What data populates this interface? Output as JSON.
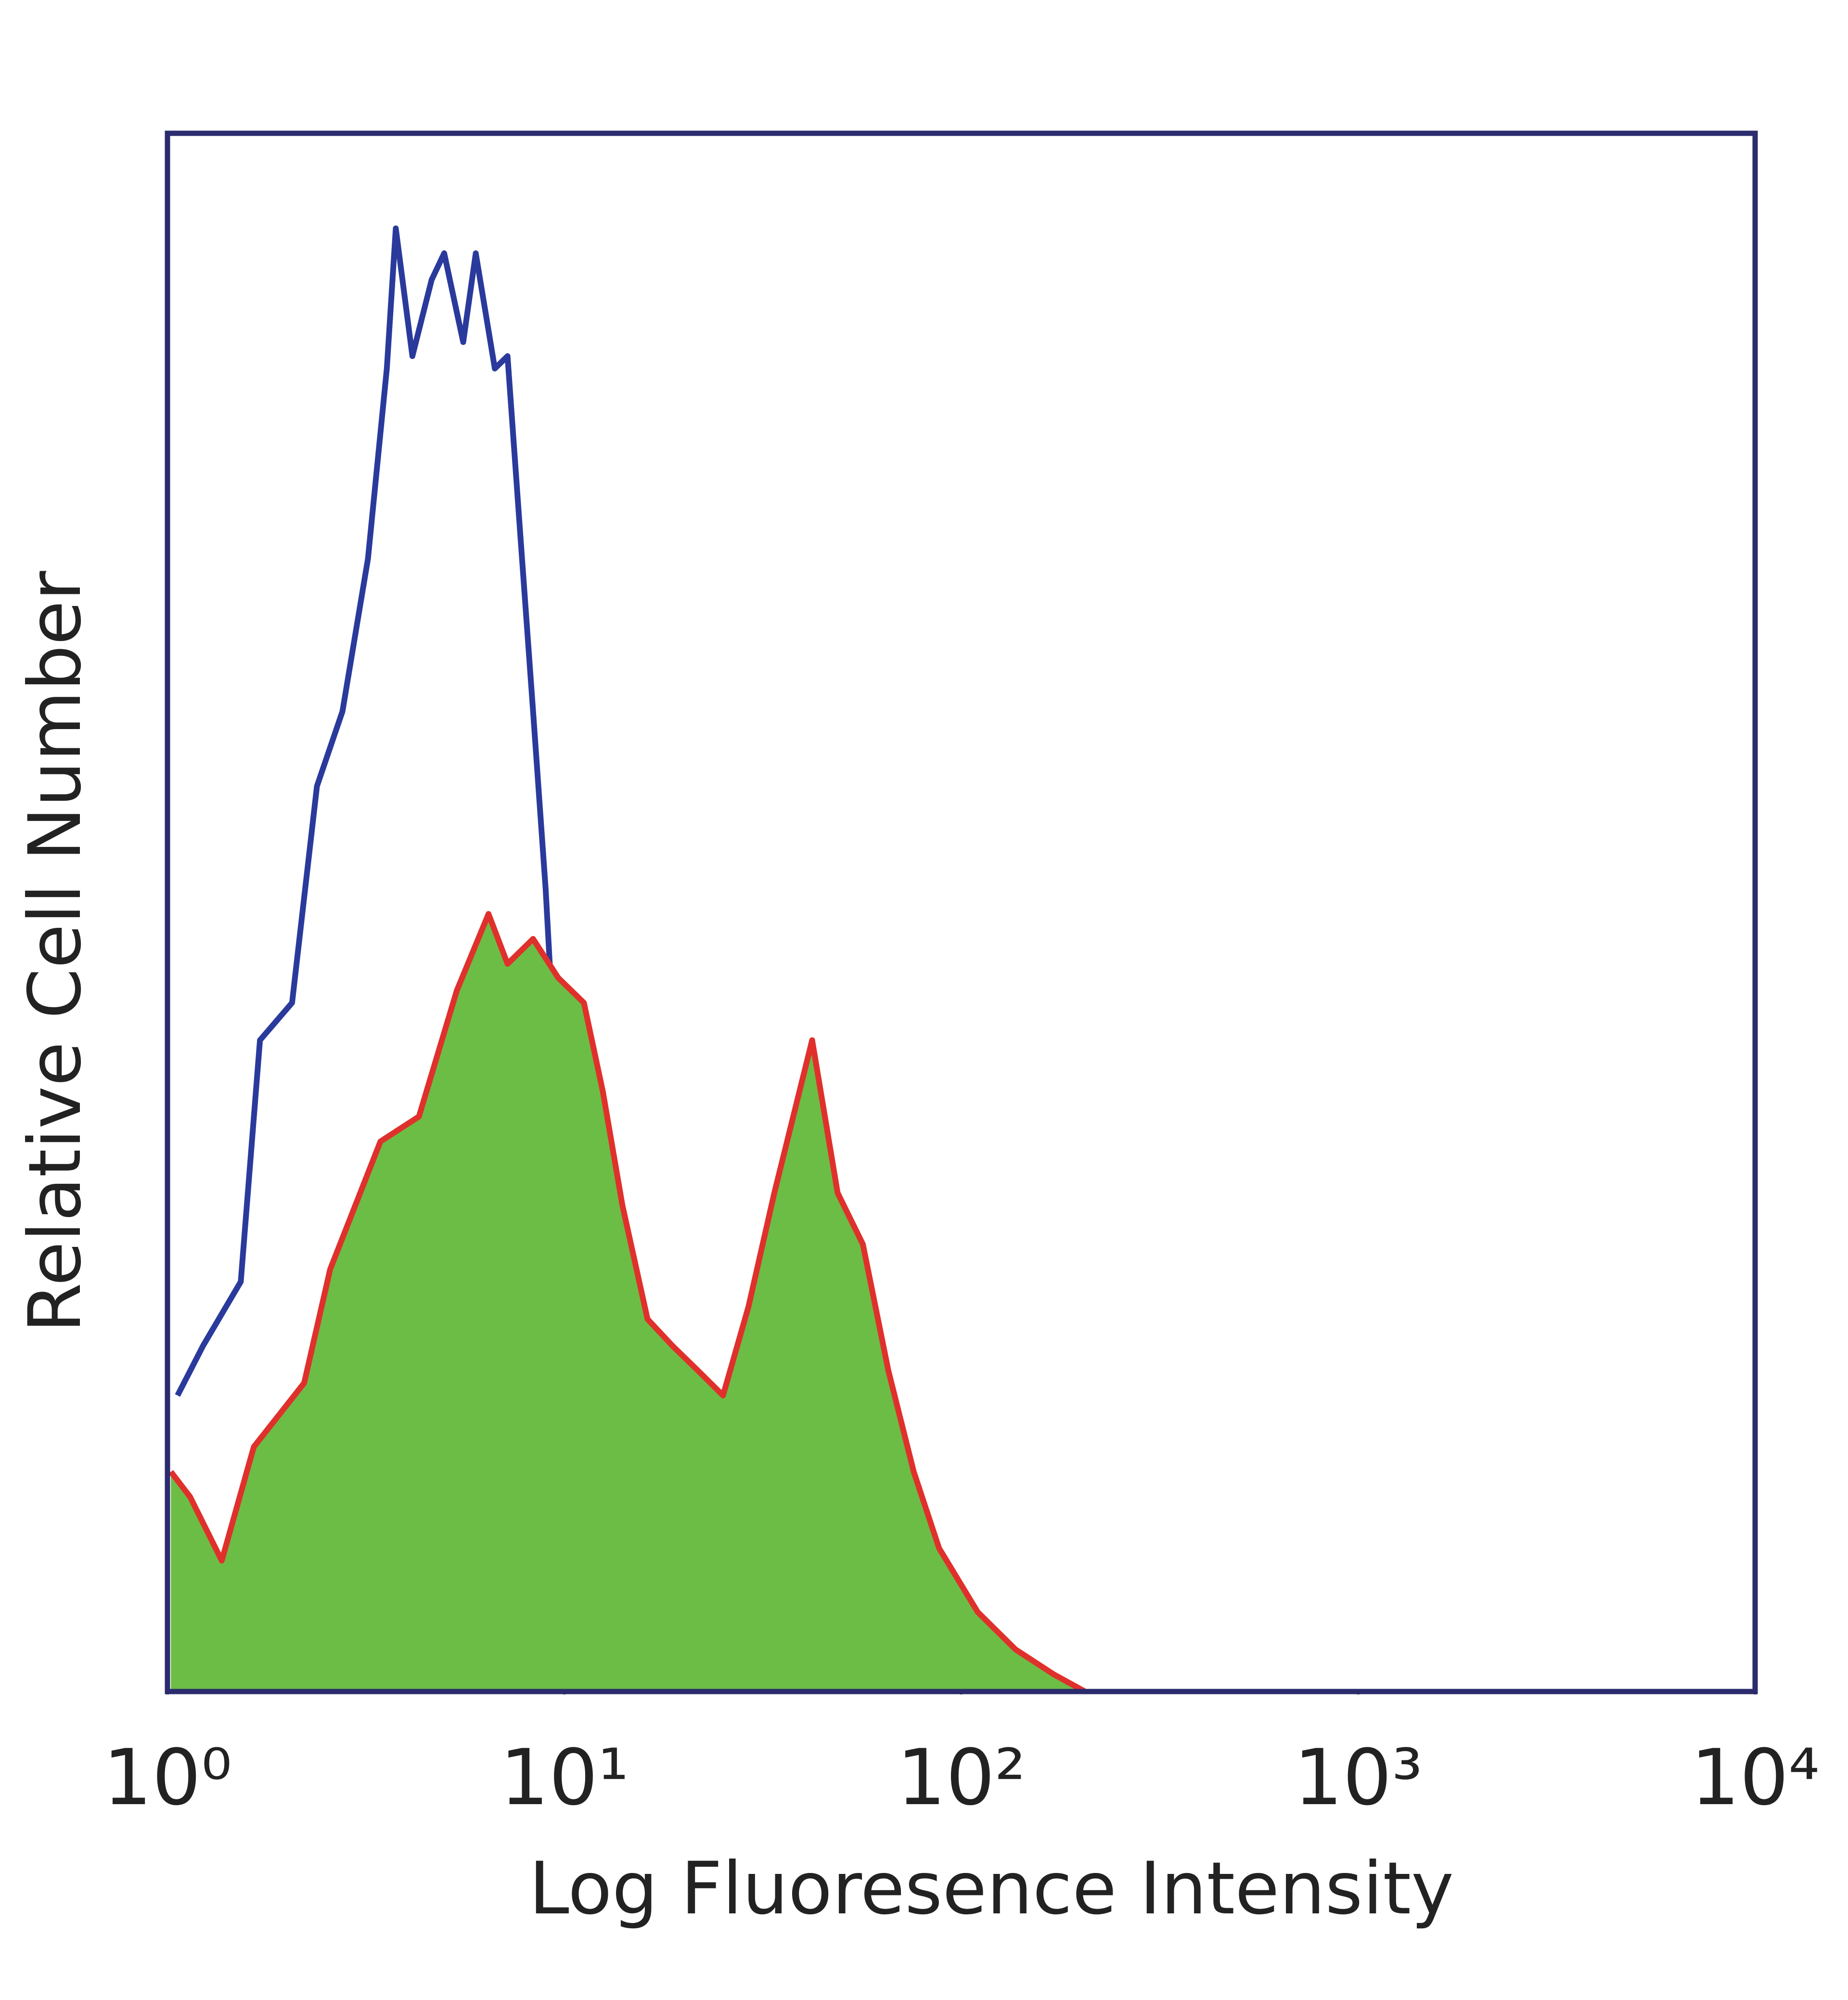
{
  "chart_data": {
    "type": "histogram-overlay",
    "xlabel": "Log Fluoresence Intensity",
    "ylabel": "Relative Cell Number",
    "xscale": "log",
    "xlim": [
      1,
      10000
    ],
    "ylim": [
      0,
      100
    ],
    "xticks": [
      {
        "value": 1,
        "label": "10⁰"
      },
      {
        "value": 10,
        "label": "10¹"
      },
      {
        "value": 100,
        "label": "10²"
      },
      {
        "value": 1000,
        "label": "10³"
      },
      {
        "value": 10000,
        "label": "10⁴"
      }
    ],
    "grid": false,
    "frame_color": "#2b2b6e",
    "series": [
      {
        "color": "#2a3a9c",
        "fill": false,
        "x": [
          1.06,
          1.23,
          1.53,
          1.71,
          2.06,
          2.38,
          2.76,
          3.2,
          3.57,
          3.76,
          4.14,
          4.63,
          4.98,
          5.56,
          5.98,
          6.68,
          7.19,
          7.74,
          8.34,
          8.97,
          9.65,
          10.8,
          12.0,
          14.0,
          16.2,
          18.7,
          23.4,
          31.4,
          48.8,
          56.5
        ],
        "values": [
          19.0,
          22.2,
          26.3,
          41.8,
          44.2,
          58.1,
          62.9,
          72.7,
          84.9,
          93.9,
          85.7,
          90.6,
          92.3,
          86.6,
          92.3,
          84.9,
          85.7,
          74.3,
          62.9,
          51.5,
          36.8,
          27.0,
          19.0,
          8.4,
          3.5,
          1.9,
          0.2,
          0.2,
          1.9,
          0
        ]
      },
      {
        "color": "#e0302c",
        "fill": "#6cbd45",
        "x": [
          1.02,
          1.14,
          1.37,
          1.65,
          2.21,
          2.57,
          3.44,
          4.3,
          5.36,
          6.44,
          7.19,
          8.34,
          9.65,
          11.2,
          12.5,
          14.0,
          16.2,
          18.7,
          21.7,
          25.1,
          29.1,
          33.8,
          42.1,
          48.8,
          56.5,
          65.5,
          75.9,
          87.9,
          110,
          137,
          171,
          205
        ],
        "values": [
          14.1,
          12.5,
          8.4,
          15.7,
          19.8,
          27.1,
          35.3,
          36.9,
          45.0,
          49.9,
          46.7,
          48.3,
          45.8,
          44.2,
          38.5,
          31.2,
          23.9,
          22.2,
          20.6,
          19.0,
          24.7,
          32.0,
          41.8,
          32.0,
          28.7,
          20.6,
          14.1,
          9.2,
          5.1,
          2.7,
          1.1,
          0
        ]
      }
    ]
  }
}
